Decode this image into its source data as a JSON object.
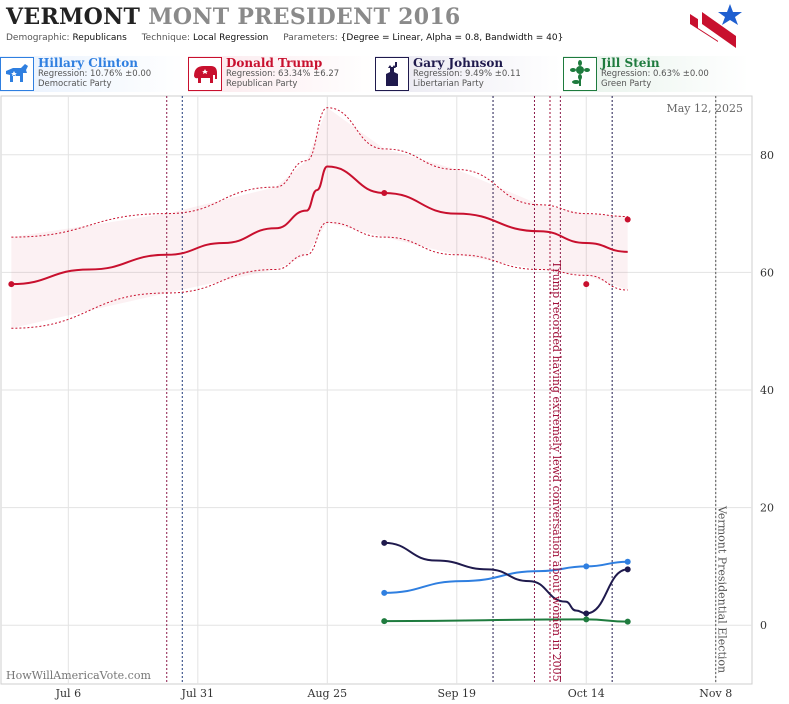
{
  "header": {
    "title_state": "VERMONT",
    "title_rest": "MONT PRESIDENT 2016",
    "demographic_label": "Demographic:",
    "demographic_value": "Republicans",
    "technique_label": "Technique:",
    "technique_value": "Local Regression",
    "parameters_label": "Parameters:",
    "parameters_value": "{Degree = Linear, Alpha = 0.8, Bandwidth = 40}"
  },
  "candidates": [
    {
      "name": "Hillary Clinton",
      "regression": "Regression: 10.76% ±0.00",
      "party": "Democratic Party",
      "color": "#2f7fe0",
      "icon": "donkey-icon"
    },
    {
      "name": "Donald Trump",
      "regression": "Regression: 63.34% ±6.27",
      "party": "Republican Party",
      "color": "#c8102e",
      "icon": "elephant-icon"
    },
    {
      "name": "Gary Johnson",
      "regression": "Regression: 9.49% ±0.11",
      "party": "Libertarian Party",
      "color": "#1f1a4d",
      "icon": "liberty-torch-icon"
    },
    {
      "name": "Jill Stein",
      "regression": "Regression: 0.63% ±0.00",
      "party": "Green Party",
      "color": "#1e7b3e",
      "icon": "sunflower-icon"
    }
  ],
  "chart_data": {
    "type": "line",
    "date_label": "May 12, 2025",
    "watermark": "HowWillAmericaVote.com",
    "x_ticks": [
      "Jul 6",
      "Jul 31",
      "Aug 25",
      "Sep 19",
      "Oct 14",
      "Nov 8"
    ],
    "x_tick_dates": [
      "2016-07-06",
      "2016-07-31",
      "2016-08-25",
      "2016-09-19",
      "2016-10-14",
      "2016-11-08"
    ],
    "x_range": [
      "2016-06-23",
      "2016-11-15"
    ],
    "y_ticks": [
      0,
      20,
      40,
      60,
      80
    ],
    "ylim": [
      -10,
      90
    ],
    "grid": true,
    "annotations": [
      {
        "date": "2016-10-07",
        "text": "Trump recorded having extremely lewd conversation about women in 2005",
        "color": "#a0103a"
      },
      {
        "date": "2016-11-08",
        "text": "Vermont Presidential Election",
        "color": "#555555"
      }
    ],
    "event_lines": [
      {
        "date": "2016-07-25",
        "color": "#8a1a4a"
      },
      {
        "date": "2016-07-28",
        "color": "#1f3a7a"
      },
      {
        "date": "2016-09-26",
        "color": "#1f1a4d"
      },
      {
        "date": "2016-10-04",
        "color": "#8a1a4a"
      },
      {
        "date": "2016-10-07",
        "color": "#a0103a"
      },
      {
        "date": "2016-10-09",
        "color": "#8a1a4a"
      },
      {
        "date": "2016-10-19",
        "color": "#1f1a4d"
      },
      {
        "date": "2016-11-08",
        "color": "#555555"
      }
    ],
    "series": [
      {
        "name": "Donald Trump",
        "color": "#c8102e",
        "points": [
          [
            "2016-06-25",
            58.0
          ],
          [
            "2016-09-05",
            73.5
          ],
          [
            "2016-10-14",
            58.0
          ],
          [
            "2016-10-22",
            69.0
          ]
        ],
        "trend": [
          [
            "2016-06-25",
            58.0
          ],
          [
            "2016-07-10",
            60.5
          ],
          [
            "2016-07-25",
            63.0
          ],
          [
            "2016-08-05",
            65.0
          ],
          [
            "2016-08-15",
            67.5
          ],
          [
            "2016-08-21",
            70.5
          ],
          [
            "2016-08-23",
            74.0
          ],
          [
            "2016-08-25",
            78.0
          ],
          [
            "2016-09-05",
            73.5
          ],
          [
            "2016-09-19",
            70.0
          ],
          [
            "2016-10-05",
            67.0
          ],
          [
            "2016-10-14",
            65.0
          ],
          [
            "2016-10-22",
            63.5
          ]
        ],
        "band_upper": [
          [
            "2016-06-25",
            66.0
          ],
          [
            "2016-07-25",
            70.0
          ],
          [
            "2016-08-15",
            74.5
          ],
          [
            "2016-08-21",
            79.0
          ],
          [
            "2016-08-25",
            88.0
          ],
          [
            "2016-09-05",
            81.0
          ],
          [
            "2016-09-19",
            77.5
          ],
          [
            "2016-10-05",
            71.5
          ],
          [
            "2016-10-14",
            70.0
          ],
          [
            "2016-10-22",
            69.5
          ]
        ],
        "band_lower": [
          [
            "2016-06-25",
            50.5
          ],
          [
            "2016-07-25",
            56.5
          ],
          [
            "2016-08-15",
            60.5
          ],
          [
            "2016-08-21",
            63.0
          ],
          [
            "2016-08-25",
            68.5
          ],
          [
            "2016-09-05",
            66.0
          ],
          [
            "2016-09-19",
            63.0
          ],
          [
            "2016-10-05",
            60.5
          ],
          [
            "2016-10-14",
            59.5
          ],
          [
            "2016-10-22",
            57.0
          ]
        ]
      },
      {
        "name": "Hillary Clinton",
        "color": "#2f7fe0",
        "points": [
          [
            "2016-09-05",
            5.5
          ],
          [
            "2016-10-14",
            10.0
          ],
          [
            "2016-10-22",
            10.8
          ]
        ],
        "trend": [
          [
            "2016-09-05",
            5.5
          ],
          [
            "2016-09-20",
            7.5
          ],
          [
            "2016-10-05",
            9.2
          ],
          [
            "2016-10-14",
            10.0
          ],
          [
            "2016-10-22",
            10.8
          ]
        ]
      },
      {
        "name": "Gary Johnson",
        "color": "#1f1a4d",
        "points": [
          [
            "2016-09-05",
            14.0
          ],
          [
            "2016-10-14",
            2.0
          ],
          [
            "2016-10-22",
            9.5
          ]
        ],
        "trend": [
          [
            "2016-09-05",
            14.0
          ],
          [
            "2016-09-15",
            11.0
          ],
          [
            "2016-09-25",
            9.5
          ],
          [
            "2016-10-03",
            7.5
          ],
          [
            "2016-10-10",
            4.0
          ],
          [
            "2016-10-12",
            2.5
          ],
          [
            "2016-10-14",
            2.0
          ],
          [
            "2016-10-22",
            9.5
          ]
        ]
      },
      {
        "name": "Jill Stein",
        "color": "#1e7b3e",
        "points": [
          [
            "2016-09-05",
            0.7
          ],
          [
            "2016-10-14",
            1.0
          ],
          [
            "2016-10-22",
            0.6
          ]
        ],
        "trend": [
          [
            "2016-09-05",
            0.7
          ],
          [
            "2016-10-14",
            1.0
          ],
          [
            "2016-10-22",
            0.6
          ]
        ]
      }
    ]
  }
}
